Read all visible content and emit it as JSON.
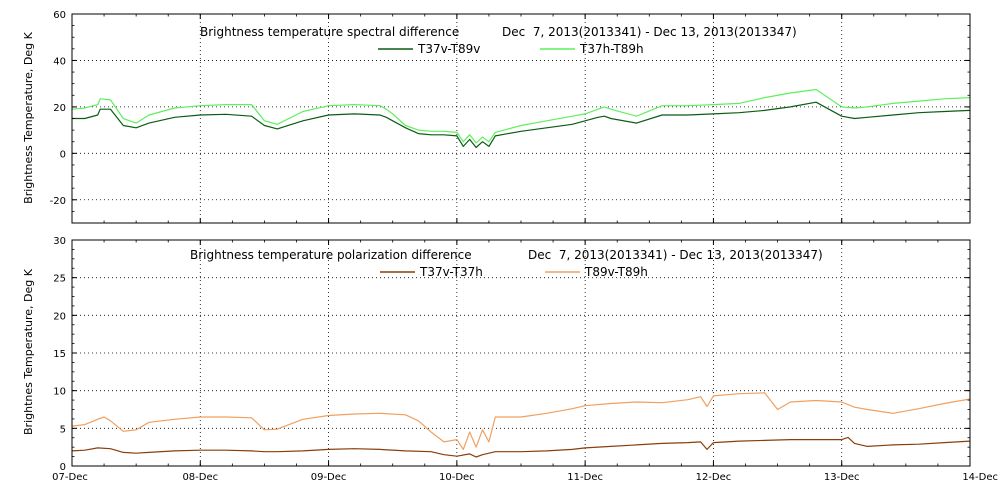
{
  "chart_data": [
    {
      "type": "line",
      "title": "Brightness temperature spectral difference",
      "date_range": "Dec  7, 2013(2013341) - Dec 13, 2013(2013347)",
      "ylabel": "Brightness Temperature, Deg K",
      "xlabel": "",
      "xlim": [
        0,
        7
      ],
      "ylim": [
        -30,
        60
      ],
      "yticks": [
        -20,
        0,
        20,
        40,
        60
      ],
      "xticks": [
        0,
        1,
        2,
        3,
        4,
        5,
        6,
        7
      ],
      "grid": true,
      "legend_position": "top-center",
      "series": [
        {
          "name": "T37v-T89v",
          "color": "#0b5c12",
          "x": [
            0.0,
            0.1,
            0.2,
            0.22,
            0.3,
            0.4,
            0.5,
            0.6,
            0.8,
            1.0,
            1.2,
            1.4,
            1.5,
            1.6,
            1.8,
            2.0,
            2.2,
            2.4,
            2.45,
            2.5,
            2.6,
            2.7,
            2.8,
            2.9,
            3.0,
            3.05,
            3.1,
            3.15,
            3.2,
            3.25,
            3.3,
            3.5,
            3.7,
            3.9,
            4.0,
            4.1,
            4.15,
            4.2,
            4.4,
            4.6,
            4.8,
            5.0,
            5.2,
            5.4,
            5.6,
            5.8,
            6.0,
            6.1,
            6.2,
            6.4,
            6.6,
            6.8,
            7.0
          ],
          "y": [
            15,
            15,
            16.5,
            19,
            19,
            12,
            11,
            13,
            15.5,
            16.5,
            16.8,
            16,
            12,
            10.5,
            14,
            16.5,
            17,
            16.5,
            15.5,
            14,
            11,
            8.5,
            8,
            8,
            7.5,
            3,
            6,
            2.5,
            5,
            3,
            7.5,
            9.5,
            11,
            12.5,
            14,
            15.5,
            16,
            15,
            13,
            16.5,
            16.5,
            17,
            17.5,
            18.5,
            20,
            22,
            16,
            15,
            15.5,
            16.5,
            17.5,
            18,
            18.5
          ]
        },
        {
          "name": "T37h-T89h",
          "color": "#5ef05c",
          "x": [
            0.0,
            0.1,
            0.2,
            0.22,
            0.3,
            0.4,
            0.5,
            0.6,
            0.8,
            1.0,
            1.2,
            1.4,
            1.5,
            1.6,
            1.8,
            2.0,
            2.2,
            2.4,
            2.45,
            2.5,
            2.6,
            2.7,
            2.8,
            2.9,
            3.0,
            3.05,
            3.1,
            3.15,
            3.2,
            3.25,
            3.3,
            3.5,
            3.7,
            3.9,
            4.0,
            4.1,
            4.15,
            4.2,
            4.4,
            4.6,
            4.8,
            5.0,
            5.2,
            5.4,
            5.6,
            5.8,
            6.0,
            6.1,
            6.2,
            6.4,
            6.6,
            6.8,
            7.0
          ],
          "y": [
            19,
            19.5,
            21,
            23.5,
            23,
            15,
            13,
            16.5,
            19.5,
            20.5,
            21,
            21,
            14,
            12.5,
            18,
            20.5,
            21,
            20.5,
            19,
            17,
            12,
            10,
            9.5,
            9.5,
            9,
            5,
            8,
            4.5,
            7,
            5,
            9,
            12,
            14,
            16,
            17,
            19,
            20,
            19,
            16,
            20.5,
            20.5,
            21,
            21.5,
            24,
            26,
            27.5,
            20,
            19.5,
            20,
            21.5,
            22.5,
            23.5,
            24
          ]
        }
      ]
    },
    {
      "type": "line",
      "title": "Brightness temperature polarization difference",
      "date_range": "Dec  7, 2013(2013341) - Dec 13, 2013(2013347)",
      "ylabel": "Brightnes Temperature, Deg K",
      "xlabel": "",
      "xlim": [
        0,
        7
      ],
      "ylim": [
        0,
        30
      ],
      "yticks": [
        0,
        5,
        10,
        15,
        20,
        25,
        30
      ],
      "xticks": [
        0,
        1,
        2,
        3,
        4,
        5,
        6,
        7
      ],
      "xtick_labels": [
        "07-Dec",
        "08-Dec",
        "09-Dec",
        "10-Dec",
        "11-Dec",
        "12-Dec",
        "13-Dec",
        "14-Dec"
      ],
      "grid": true,
      "legend_position": "top-center",
      "series": [
        {
          "name": "T37v-T37h",
          "color": "#8a3e0a",
          "x": [
            0.0,
            0.1,
            0.2,
            0.3,
            0.4,
            0.5,
            0.6,
            0.8,
            1.0,
            1.2,
            1.4,
            1.5,
            1.6,
            1.8,
            2.0,
            2.2,
            2.4,
            2.6,
            2.8,
            2.9,
            3.0,
            3.1,
            3.15,
            3.2,
            3.3,
            3.5,
            3.7,
            3.9,
            4.0,
            4.2,
            4.4,
            4.6,
            4.8,
            4.9,
            4.95,
            5.0,
            5.2,
            5.4,
            5.6,
            5.8,
            6.0,
            6.05,
            6.1,
            6.2,
            6.4,
            6.6,
            6.8,
            7.0
          ],
          "y": [
            2.0,
            2.1,
            2.4,
            2.3,
            1.8,
            1.7,
            1.8,
            2.0,
            2.1,
            2.1,
            2.0,
            1.9,
            1.9,
            2.0,
            2.2,
            2.3,
            2.2,
            2.0,
            1.9,
            1.5,
            1.3,
            1.6,
            1.2,
            1.5,
            1.9,
            1.9,
            2.0,
            2.2,
            2.4,
            2.6,
            2.8,
            3.0,
            3.1,
            3.2,
            2.2,
            3.1,
            3.3,
            3.4,
            3.5,
            3.5,
            3.5,
            3.8,
            3.0,
            2.6,
            2.8,
            2.9,
            3.1,
            3.3
          ]
        },
        {
          "name": "T89v-T89h",
          "color": "#f0a060",
          "x": [
            0.0,
            0.1,
            0.2,
            0.25,
            0.3,
            0.4,
            0.5,
            0.6,
            0.8,
            1.0,
            1.2,
            1.4,
            1.5,
            1.6,
            1.8,
            2.0,
            2.2,
            2.4,
            2.6,
            2.7,
            2.8,
            2.9,
            3.0,
            3.05,
            3.1,
            3.15,
            3.2,
            3.25,
            3.3,
            3.5,
            3.7,
            3.9,
            4.0,
            4.2,
            4.4,
            4.6,
            4.8,
            4.9,
            4.95,
            5.0,
            5.2,
            5.4,
            5.5,
            5.6,
            5.8,
            6.0,
            6.1,
            6.2,
            6.4,
            6.6,
            6.8,
            7.0
          ],
          "y": [
            5.3,
            5.5,
            6.2,
            6.5,
            6.0,
            4.6,
            4.8,
            5.8,
            6.2,
            6.5,
            6.5,
            6.4,
            4.8,
            4.9,
            6.2,
            6.7,
            6.9,
            7.0,
            6.8,
            6.0,
            4.5,
            3.2,
            3.5,
            2.2,
            4.5,
            2.5,
            4.8,
            3.2,
            6.5,
            6.5,
            7.0,
            7.6,
            8.0,
            8.3,
            8.5,
            8.4,
            8.8,
            9.2,
            7.9,
            9.3,
            9.6,
            9.7,
            7.5,
            8.5,
            8.7,
            8.5,
            7.8,
            7.5,
            7.0,
            7.6,
            8.3,
            8.9
          ]
        }
      ]
    }
  ]
}
